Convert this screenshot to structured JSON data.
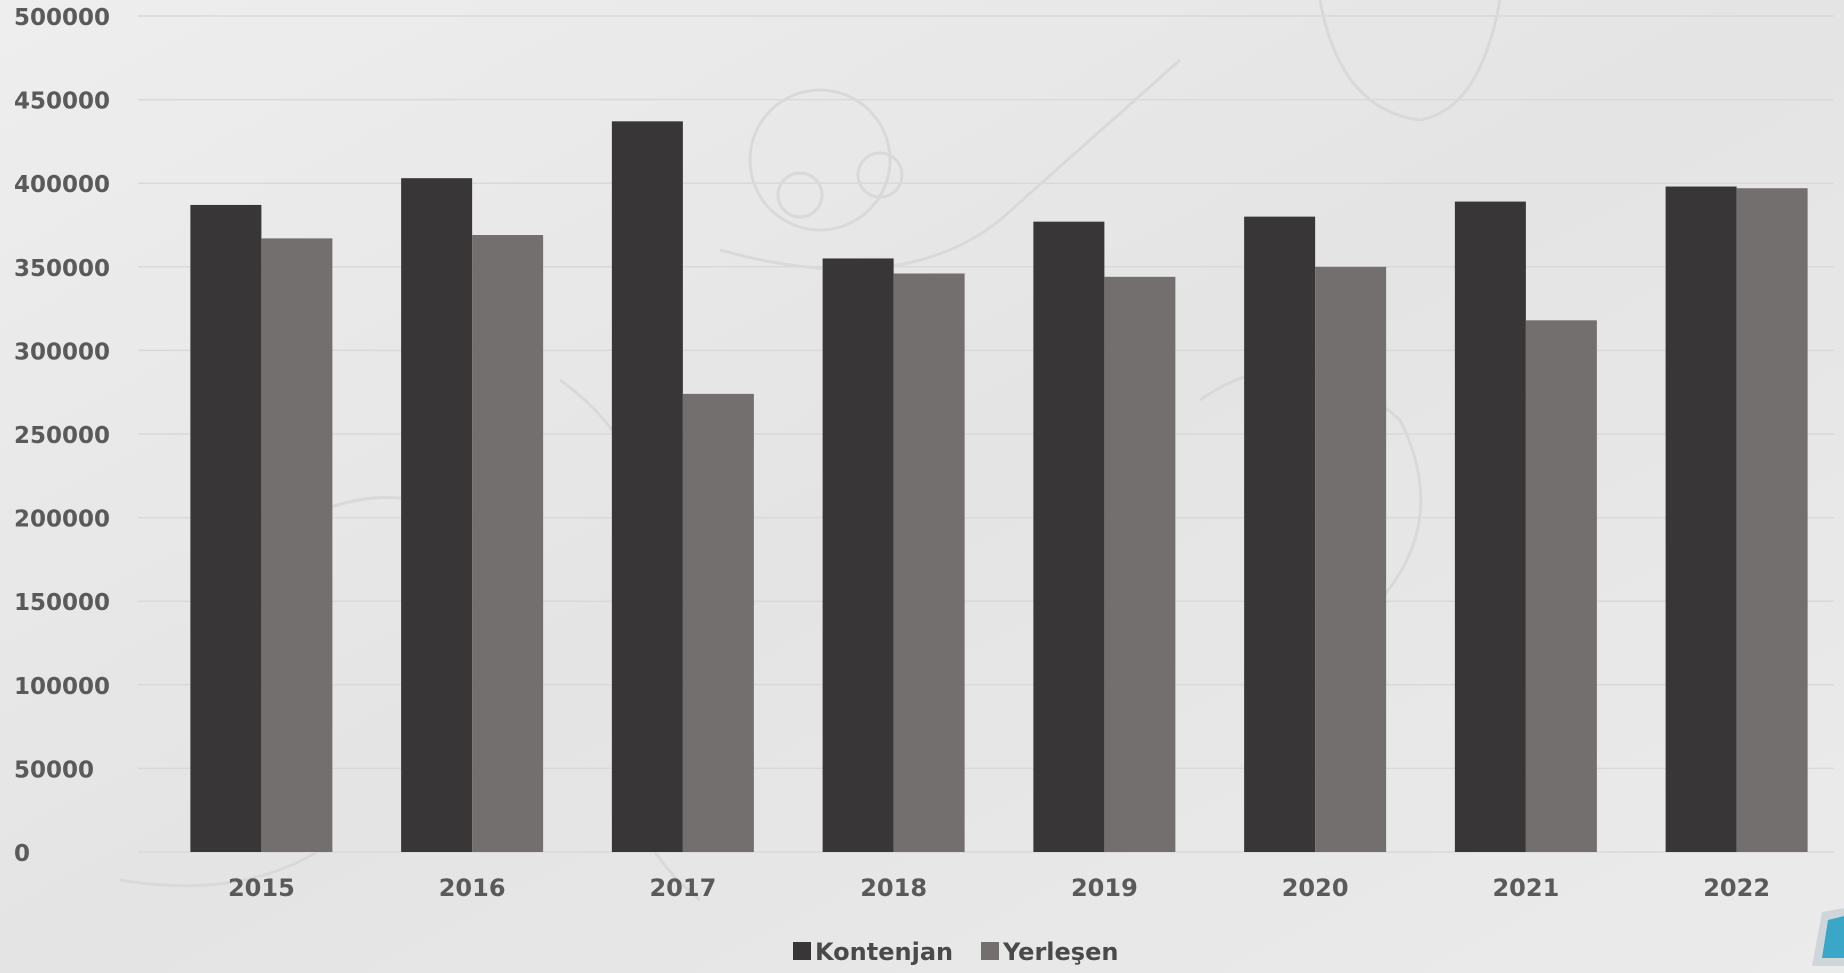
{
  "chart_data": {
    "type": "bar",
    "categories": [
      "2015",
      "2016",
      "2017",
      "2018",
      "2019",
      "2020",
      "2021",
      "2022"
    ],
    "series": [
      {
        "name": "Kontenjan",
        "color": "#383637",
        "values": [
          387000,
          403000,
          437000,
          355000,
          377000,
          380000,
          389000,
          398000
        ]
      },
      {
        "name": "Yerleşen",
        "color": "#736f6e",
        "values": [
          367000,
          369000,
          274000,
          346000,
          344000,
          350000,
          318000,
          397000
        ]
      }
    ],
    "yticks": [
      0,
      50000,
      100000,
      150000,
      200000,
      250000,
      300000,
      350000,
      400000,
      450000,
      500000
    ],
    "ylim": [
      0,
      500000
    ],
    "grid": true,
    "legend_position": "bottom-center",
    "title": "",
    "xlabel": "",
    "ylabel": ""
  }
}
